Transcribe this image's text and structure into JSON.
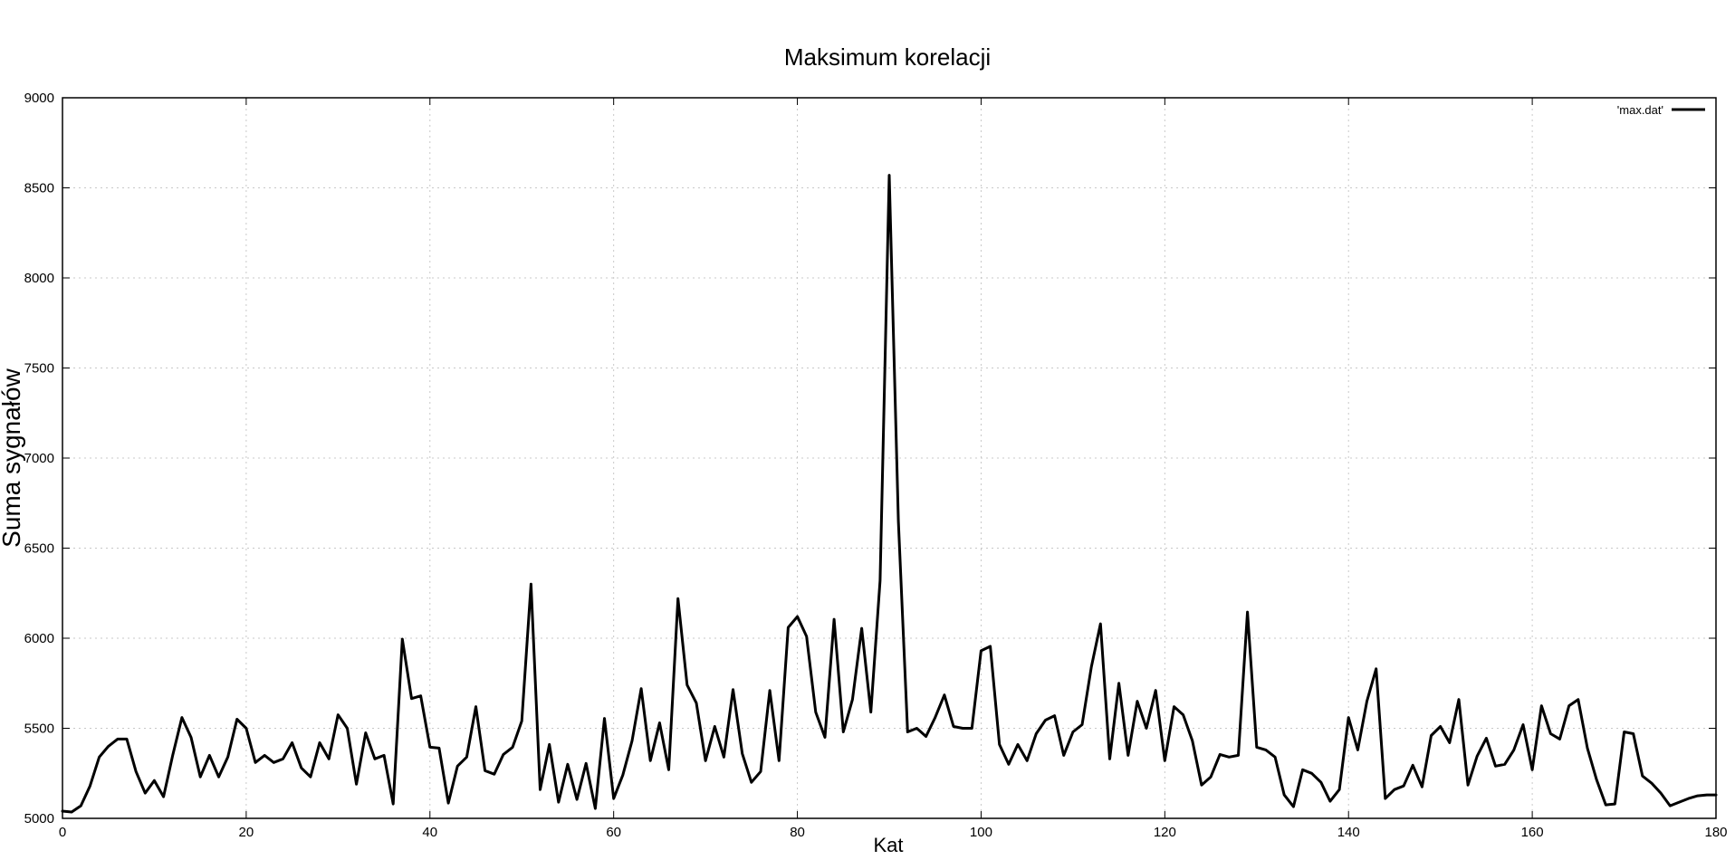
{
  "chart_data": {
    "type": "line",
    "title": "Maksimum korelacji",
    "xlabel": "Kat",
    "ylabel": "Suma sygnałów",
    "xlim": [
      0,
      180
    ],
    "ylim": [
      5000,
      9000
    ],
    "x_ticks": [
      "0",
      "20",
      "40",
      "60",
      "80",
      "100",
      "120",
      "140",
      "160",
      "180"
    ],
    "y_ticks": [
      "5000",
      "5500",
      "6000",
      "6500",
      "7000",
      "7500",
      "8000",
      "8500",
      "9000"
    ],
    "grid": true,
    "legend_position": "top-right",
    "series": [
      {
        "name": "'max.dat'",
        "color": "#000000",
        "x": [
          0,
          1,
          2,
          3,
          4,
          5,
          6,
          7,
          8,
          9,
          10,
          11,
          12,
          13,
          14,
          15,
          16,
          17,
          18,
          19,
          20,
          21,
          22,
          23,
          24,
          25,
          26,
          27,
          28,
          29,
          30,
          31,
          32,
          33,
          34,
          35,
          36,
          37,
          38,
          39,
          40,
          41,
          42,
          43,
          44,
          45,
          46,
          47,
          48,
          49,
          50,
          51,
          52,
          53,
          54,
          55,
          56,
          57,
          58,
          59,
          60,
          61,
          62,
          63,
          64,
          65,
          66,
          67,
          68,
          69,
          70,
          71,
          72,
          73,
          74,
          75,
          76,
          77,
          78,
          79,
          80,
          81,
          82,
          83,
          84,
          85,
          86,
          87,
          88,
          89,
          90,
          91,
          92,
          93,
          94,
          95,
          96,
          97,
          98,
          99,
          100,
          101,
          102,
          103,
          104,
          105,
          106,
          107,
          108,
          109,
          110,
          111,
          112,
          113,
          114,
          115,
          116,
          117,
          118,
          119,
          120,
          121,
          122,
          123,
          124,
          125,
          126,
          127,
          128,
          129,
          130,
          131,
          132,
          133,
          134,
          135,
          136,
          137,
          138,
          139,
          140,
          141,
          142,
          143,
          144,
          145,
          146,
          147,
          148,
          149,
          150,
          151,
          152,
          153,
          154,
          155,
          156,
          157,
          158,
          159,
          160,
          161,
          162,
          163,
          164,
          165,
          166,
          167,
          168,
          169,
          170,
          171,
          172,
          173,
          174,
          175,
          176,
          177,
          178,
          179,
          180
        ],
        "y": [
          5040,
          5035,
          5070,
          5180,
          5340,
          5400,
          5440,
          5440,
          5260,
          5140,
          5210,
          5120,
          5350,
          5560,
          5450,
          5230,
          5350,
          5230,
          5340,
          5550,
          5500,
          5310,
          5350,
          5310,
          5330,
          5420,
          5280,
          5230,
          5420,
          5330,
          5575,
          5500,
          5190,
          5475,
          5330,
          5350,
          5080,
          5995,
          5665,
          5680,
          5395,
          5390,
          5085,
          5290,
          5340,
          5620,
          5265,
          5245,
          5355,
          5395,
          5540,
          6300,
          5160,
          5410,
          5090,
          5300,
          5105,
          5305,
          5055,
          5555,
          5110,
          5240,
          5430,
          5720,
          5320,
          5530,
          5270,
          6220,
          5740,
          5640,
          5320,
          5510,
          5340,
          5715,
          5360,
          5200,
          5260,
          5710,
          5320,
          6060,
          6120,
          6010,
          5590,
          5450,
          6105,
          5480,
          5660,
          6055,
          5590,
          6320,
          8570,
          6650,
          5480,
          5500,
          5455,
          5560,
          5685,
          5510,
          5500,
          5500,
          5930,
          5955,
          5410,
          5300,
          5410,
          5320,
          5470,
          5545,
          5570,
          5350,
          5480,
          5520,
          5840,
          6080,
          5330,
          5750,
          5350,
          5650,
          5500,
          5710,
          5320,
          5620,
          5575,
          5430,
          5185,
          5230,
          5355,
          5340,
          5350,
          6145,
          5395,
          5380,
          5340,
          5130,
          5065,
          5270,
          5250,
          5200,
          5095,
          5160,
          5560,
          5380,
          5650,
          5830,
          5110,
          5160,
          5180,
          5295,
          5175,
          5460,
          5510,
          5420,
          5660,
          5185,
          5345,
          5445,
          5290,
          5300,
          5380,
          5520,
          5270,
          5625,
          5470,
          5440,
          5625,
          5660,
          5390,
          5215,
          5075,
          5080,
          5480,
          5470,
          5235,
          5195,
          5140,
          5070,
          5090,
          5110,
          5125,
          5130,
          5130
        ]
      }
    ]
  }
}
